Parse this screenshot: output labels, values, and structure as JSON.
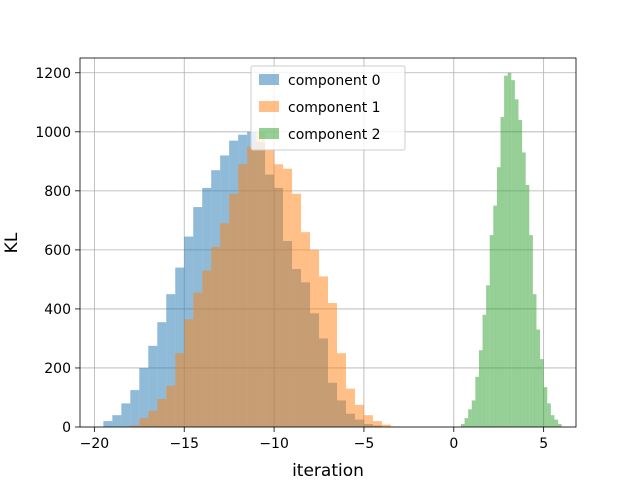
{
  "chart_data": {
    "type": "histogram",
    "title": "",
    "xlabel": "iteration",
    "ylabel": "KL",
    "xlim": [
      -20.8,
      6.8
    ],
    "ylim": [
      0,
      1200
    ],
    "xticks": [
      -20,
      -15,
      -10,
      -5,
      0,
      5
    ],
    "yticks": [
      0,
      200,
      400,
      600,
      800,
      1000,
      1200
    ],
    "grid": true,
    "legend_position": "top-center",
    "alpha": 0.5,
    "series": [
      {
        "name": "component 0",
        "color": "#1f77b4",
        "bin_width": 0.5,
        "bins_start": -19.5,
        "counts": [
          20,
          40,
          80,
          125,
          200,
          275,
          355,
          450,
          540,
          645,
          745,
          810,
          870,
          920,
          970,
          990,
          1000,
          965,
          855,
          810,
          630,
          535,
          490,
          385,
          300,
          150,
          90,
          45,
          25,
          10,
          5
        ]
      },
      {
        "name": "component 1",
        "color": "#ff7f0e",
        "bin_width": 0.5,
        "bins_start": -18.0,
        "counts": [
          5,
          30,
          55,
          95,
          140,
          250,
          365,
          455,
          530,
          610,
          690,
          790,
          890,
          950,
          1000,
          940,
          890,
          875,
          790,
          660,
          600,
          510,
          420,
          250,
          130,
          75,
          40,
          20,
          8,
          2
        ]
      },
      {
        "name": "component 2",
        "color": "#2ca02c",
        "bin_width": 0.2,
        "bins_start": 0.4,
        "counts": [
          10,
          30,
          60,
          90,
          170,
          260,
          380,
          480,
          650,
          750,
          880,
          1050,
          1190,
          1200,
          1175,
          1110,
          1040,
          930,
          820,
          650,
          450,
          330,
          230,
          135,
          80,
          40,
          25,
          10
        ]
      }
    ]
  }
}
